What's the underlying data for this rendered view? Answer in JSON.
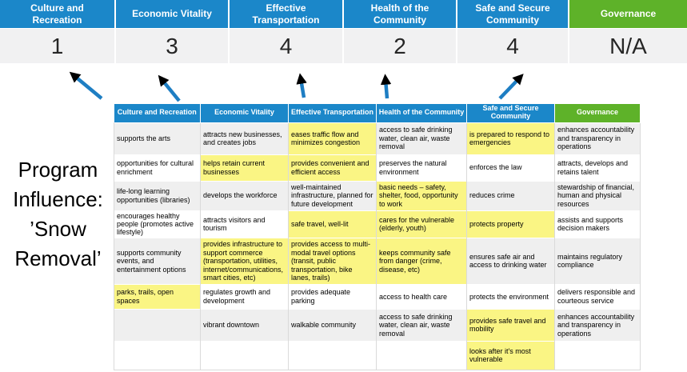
{
  "title": {
    "lines": [
      "Program",
      "Influence:",
      "’Snow",
      "Removal’"
    ]
  },
  "priorities": [
    {
      "label": "Culture and Recreation",
      "score": "1",
      "color": "blue"
    },
    {
      "label": "Economic Vitality",
      "score": "3",
      "color": "blue"
    },
    {
      "label": "Effective Transportation",
      "score": "4",
      "color": "blue"
    },
    {
      "label": "Health of the Community",
      "score": "2",
      "color": "blue"
    },
    {
      "label": "Safe and Secure Community",
      "score": "4",
      "color": "blue"
    },
    {
      "label": "Governance",
      "score": "N/A",
      "color": "green"
    }
  ],
  "matrix": {
    "headers": [
      {
        "label": "Culture and Recreation",
        "color": "blue"
      },
      {
        "label": "Economic Vitality",
        "color": "blue"
      },
      {
        "label": "Effective Transportation",
        "color": "blue"
      },
      {
        "label": "Health of the Community",
        "color": "blue"
      },
      {
        "label": "Safe and Secure Community",
        "color": "blue"
      },
      {
        "label": "Governance",
        "color": "green"
      }
    ],
    "rows": [
      {
        "cells": [
          {
            "text": "supports the arts",
            "highlight": false
          },
          {
            "text": "attracts new businesses, and creates jobs",
            "highlight": false
          },
          {
            "text": "eases traffic flow and minimizes congestion",
            "highlight": true
          },
          {
            "text": "access to safe drinking water, clean air, waste removal",
            "highlight": false
          },
          {
            "text": "is prepared to respond to emergencies",
            "highlight": true
          },
          {
            "text": "enhances accountability and transparency in operations",
            "highlight": false
          }
        ]
      },
      {
        "cells": [
          {
            "text": "opportunities for cultural enrichment",
            "highlight": false
          },
          {
            "text": "helps retain current businesses",
            "highlight": true
          },
          {
            "text": "provides convenient and efficient access",
            "highlight": true
          },
          {
            "text": "preserves the natural environment",
            "highlight": false
          },
          {
            "text": "enforces the law",
            "highlight": false
          },
          {
            "text": "attracts, develops and retains talent",
            "highlight": false
          }
        ]
      },
      {
        "cells": [
          {
            "text": "life-long learning opportunities (libraries)",
            "highlight": false
          },
          {
            "text": "develops the workforce",
            "highlight": false
          },
          {
            "text": "well-maintained infrastructure, planned for future development",
            "highlight": false
          },
          {
            "text": "basic needs – safety, shelter, food, opportunity to work",
            "highlight": true
          },
          {
            "text": "reduces crime",
            "highlight": false
          },
          {
            "text": "stewardship of financial, human and physical resources",
            "highlight": false
          }
        ]
      },
      {
        "cells": [
          {
            "text": "encourages healthy people (promotes active lifestyle)",
            "highlight": false
          },
          {
            "text": "attracts visitors and tourism",
            "highlight": false
          },
          {
            "text": "safe travel, well-lit",
            "highlight": true
          },
          {
            "text": "cares for the vulnerable (elderly, youth)",
            "highlight": true
          },
          {
            "text": "protects property",
            "highlight": true
          },
          {
            "text": "assists and supports decision makers",
            "highlight": false
          }
        ]
      },
      {
        "cells": [
          {
            "text": "supports community events, and entertainment options",
            "highlight": false
          },
          {
            "text": "provides infrastructure to support commerce (transportation, utilities, internet/communications, smart cities, etc)",
            "highlight": true
          },
          {
            "text": "provides access to multi-modal travel options (transit, public transportation, bike lanes, trails)",
            "highlight": true
          },
          {
            "text": "keeps community safe from danger (crime, disease, etc)",
            "highlight": true
          },
          {
            "text": "ensures safe air and access to drinking water",
            "highlight": false
          },
          {
            "text": "maintains regulatory compliance",
            "highlight": false
          }
        ]
      },
      {
        "cells": [
          {
            "text": "parks, trails, open spaces",
            "highlight": true
          },
          {
            "text": "regulates growth and development",
            "highlight": false
          },
          {
            "text": "provides adequate parking",
            "highlight": false
          },
          {
            "text": "access to health care",
            "highlight": false
          },
          {
            "text": "protects the environment",
            "highlight": false
          },
          {
            "text": "delivers responsible and courteous service",
            "highlight": false
          }
        ]
      },
      {
        "cells": [
          {
            "text": "",
            "highlight": false
          },
          {
            "text": "vibrant downtown",
            "highlight": false
          },
          {
            "text": "walkable community",
            "highlight": false
          },
          {
            "text": "access to safe drinking water, clean air, waste removal",
            "highlight": false
          },
          {
            "text": "provides safe travel and mobility",
            "highlight": true
          },
          {
            "text": "enhances accountability and transparency in operations",
            "highlight": false
          }
        ]
      },
      {
        "cells": [
          {
            "text": "",
            "highlight": false
          },
          {
            "text": "",
            "highlight": false
          },
          {
            "text": "",
            "highlight": false
          },
          {
            "text": "",
            "highlight": false
          },
          {
            "text": "looks after it's most vulnerable",
            "highlight": true
          },
          {
            "text": "",
            "highlight": false
          }
        ]
      }
    ]
  },
  "colors": {
    "blue": "#1B87C9",
    "green": "#5EB229",
    "yellow": "#FAF584",
    "stripe": "#EFEFEF",
    "score_bg": "#F1F1F2",
    "arrow": "#1E7EC3"
  }
}
